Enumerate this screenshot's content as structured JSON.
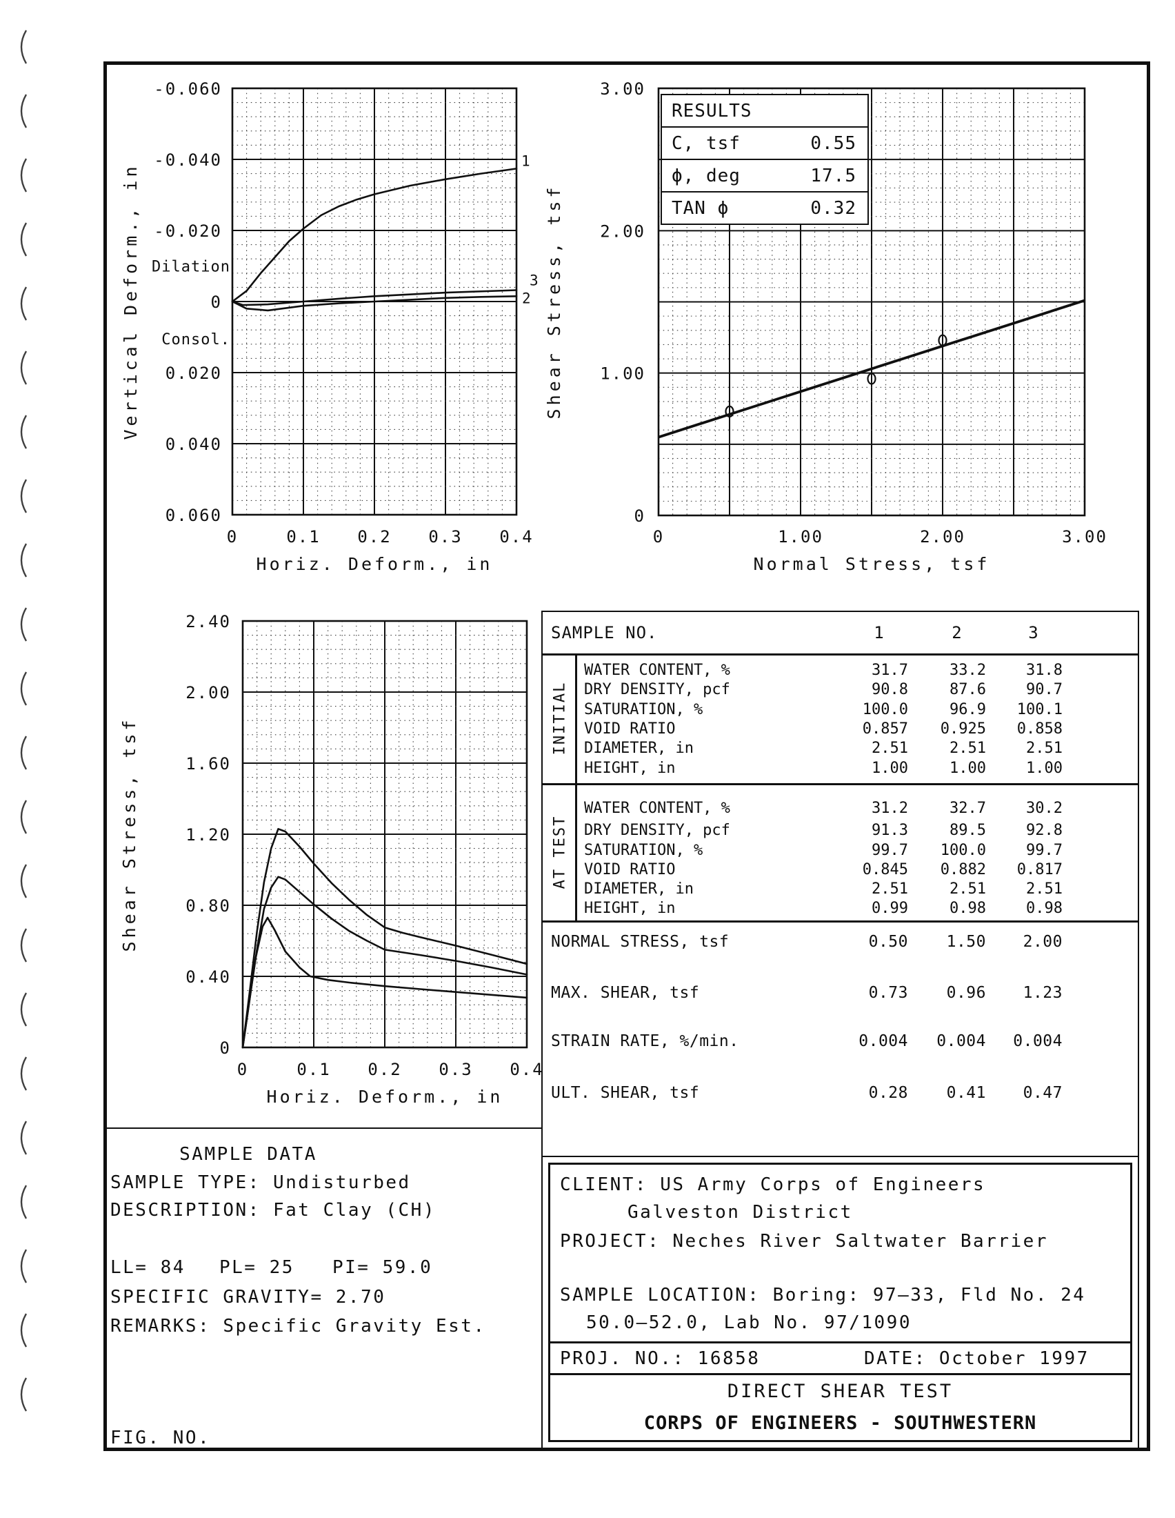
{
  "page": {
    "results_box": {
      "title": "RESULTS",
      "rows": [
        {
          "label": "C, tsf",
          "value": "0.55"
        },
        {
          "label": "ϕ, deg",
          "value": "17.5"
        },
        {
          "label": "TAN ϕ",
          "value": "0.32"
        }
      ]
    },
    "sample_table": {
      "header": "SAMPLE NO.",
      "columns": [
        "1",
        "2",
        "3"
      ],
      "sections": [
        {
          "label": "INITIAL",
          "rows": [
            {
              "name": "WATER CONTENT, %",
              "values": [
                "31.7",
                "33.2",
                "31.8"
              ]
            },
            {
              "name": "DRY DENSITY, pcf",
              "values": [
                "90.8",
                "87.6",
                "90.7"
              ]
            },
            {
              "name": "SATURATION, %",
              "values": [
                "100.0",
                "96.9",
                "100.1"
              ]
            },
            {
              "name": "VOID RATIO",
              "values": [
                "0.857",
                "0.925",
                "0.858"
              ]
            },
            {
              "name": "DIAMETER, in",
              "values": [
                "2.51",
                "2.51",
                "2.51"
              ]
            },
            {
              "name": "HEIGHT, in",
              "values": [
                "1.00",
                "1.00",
                "1.00"
              ]
            }
          ]
        },
        {
          "label": "AT TEST",
          "rows": [
            {
              "name": "WATER CONTENT, %",
              "values": [
                "31.2",
                "32.7",
                "30.2"
              ]
            },
            {
              "name": "DRY DENSITY, pcf",
              "values": [
                "91.3",
                "89.5",
                "92.8"
              ]
            },
            {
              "name": "SATURATION, %",
              "values": [
                "99.7",
                "100.0",
                "99.7"
              ]
            },
            {
              "name": "VOID RATIO",
              "values": [
                "0.845",
                "0.882",
                "0.817"
              ]
            },
            {
              "name": "DIAMETER, in",
              "values": [
                "2.51",
                "2.51",
                "2.51"
              ]
            },
            {
              "name": "HEIGHT, in",
              "values": [
                "0.99",
                "0.98",
                "0.98"
              ]
            }
          ]
        }
      ],
      "summary": [
        {
          "name": "NORMAL STRESS, tsf",
          "values": [
            "0.50",
            "1.50",
            "2.00"
          ]
        },
        {
          "name": "MAX. SHEAR, tsf",
          "values": [
            "0.73",
            "0.96",
            "1.23"
          ]
        },
        {
          "name": "STRAIN RATE, %/min.",
          "values": [
            "0.004",
            "0.004",
            "0.004"
          ]
        },
        {
          "name": "ULT. SHEAR, tsf",
          "values": [
            "0.28",
            "0.41",
            "0.47"
          ]
        }
      ]
    },
    "sample_data": {
      "title": "SAMPLE DATA",
      "type_line": "SAMPLE TYPE: Undisturbed",
      "description_line": "DESCRIPTION: Fat Clay (CH)",
      "ll": "LL= 84",
      "pl": "PL= 25",
      "pi": "PI= 59.0",
      "specific_gravity": "SPECIFIC GRAVITY= 2.70",
      "remarks": "REMARKS: Specific Gravity Est.",
      "fig_label": "FIG. NO."
    },
    "project_block": {
      "client_line1": "CLIENT: US Army Corps of Engineers",
      "client_line2": "Galveston District",
      "project": "PROJECT: Neches River Saltwater Barrier",
      "location1": "SAMPLE LOCATION: Boring: 97–33, Fld No. 24",
      "location2": "50.0–52.0, Lab No. 97/1090",
      "proj_no": "PROJ. NO.: 16858",
      "date": "DATE: October 1997",
      "test_title": "DIRECT SHEAR TEST",
      "organization": "CORPS OF ENGINEERS - SOUTHWESTERN"
    }
  },
  "chart_data": [
    {
      "id": "vertical-deform",
      "type": "line",
      "title": "",
      "xlabel": "Horiz. Deform., in",
      "ylabel": "Vertical Deform., in",
      "x_min": 0,
      "x_max": 0.4,
      "x_major": 0.1,
      "x_minor": 0.02,
      "y_top": -0.06,
      "y_bottom": 0.06,
      "y_major": 0.02,
      "y_minor": 0.004,
      "xticks": [
        {
          "v": 0,
          "label": "0"
        },
        {
          "v": 0.1,
          "label": "0.1"
        },
        {
          "v": 0.2,
          "label": "0.2"
        },
        {
          "v": 0.3,
          "label": "0.3"
        },
        {
          "v": 0.4,
          "label": "0.4"
        }
      ],
      "yticks": [
        {
          "v": -0.06,
          "label": "-0.060"
        },
        {
          "v": -0.04,
          "label": "-0.040"
        },
        {
          "v": -0.02,
          "label": "-0.020"
        },
        {
          "v": 0,
          "label": "0"
        },
        {
          "v": 0.02,
          "label": "0.020"
        },
        {
          "v": 0.04,
          "label": "0.040"
        },
        {
          "v": 0.06,
          "label": "0.060"
        }
      ],
      "annotations": [
        {
          "text": "Dilation",
          "v": -0.01
        },
        {
          "text": "Consol.",
          "v": 0.0105
        }
      ],
      "series": [
        {
          "name": "sample-1",
          "end_label": "1",
          "label_offset": [
            7,
            -4
          ],
          "points": [
            [
              0,
              0
            ],
            [
              0.02,
              -0.003
            ],
            [
              0.04,
              -0.008
            ],
            [
              0.06,
              -0.0125
            ],
            [
              0.08,
              -0.017
            ],
            [
              0.1,
              -0.0205
            ],
            [
              0.125,
              -0.0243
            ],
            [
              0.15,
              -0.0268
            ],
            [
              0.175,
              -0.0287
            ],
            [
              0.2,
              -0.0302
            ],
            [
              0.25,
              -0.0326
            ],
            [
              0.3,
              -0.0344
            ],
            [
              0.35,
              -0.036
            ],
            [
              0.4,
              -0.0374
            ]
          ]
        },
        {
          "name": "sample-2",
          "end_label": "2",
          "label_offset": [
            8,
            10
          ],
          "points": [
            [
              0,
              0
            ],
            [
              0.02,
              0.002
            ],
            [
              0.05,
              0.0025
            ],
            [
              0.1,
              0.0012
            ],
            [
              0.15,
              0.0005
            ],
            [
              0.2,
              0
            ],
            [
              0.25,
              -0.0005
            ],
            [
              0.3,
              -0.001
            ],
            [
              0.35,
              -0.0013
            ],
            [
              0.4,
              -0.0015
            ]
          ]
        },
        {
          "name": "sample-3",
          "end_label": "3",
          "label_offset": [
            19,
            -7
          ],
          "points": [
            [
              0,
              0
            ],
            [
              0.015,
              0.001
            ],
            [
              0.05,
              0.0008
            ],
            [
              0.1,
              0
            ],
            [
              0.15,
              -0.0008
            ],
            [
              0.2,
              -0.0015
            ],
            [
              0.3,
              -0.0025
            ],
            [
              0.4,
              -0.0032
            ]
          ]
        }
      ]
    },
    {
      "id": "failure-envelope",
      "type": "scatter",
      "title": "",
      "xlabel": "Normal Stress, tsf",
      "ylabel": "Shear Stress, tsf",
      "x_min": 0,
      "x_max": 3.0,
      "x_major": 0.5,
      "x_minor": 0.1,
      "y_top": 3.0,
      "y_bottom": 0,
      "y_major": 0.5,
      "y_minor": 0.1,
      "xticks": [
        {
          "v": 0,
          "label": "0"
        },
        {
          "v": 1.0,
          "label": "1.00"
        },
        {
          "v": 2.0,
          "label": "2.00"
        },
        {
          "v": 3.0,
          "label": "3.00"
        }
      ],
      "yticks": [
        {
          "v": 3.0,
          "label": "3.00"
        },
        {
          "v": 2.0,
          "label": "2.00"
        },
        {
          "v": 1.0,
          "label": "1.00"
        },
        {
          "v": 0,
          "label": "0"
        }
      ],
      "annotations": [],
      "trend_line": {
        "c_tsf": 0.55,
        "tan_phi": 0.32,
        "points": [
          [
            0,
            0.55
          ],
          [
            3.0,
            1.51
          ]
        ]
      },
      "markers": [
        [
          0.5,
          0.73
        ],
        [
          1.5,
          0.96
        ],
        [
          2.0,
          1.23
        ]
      ],
      "series": []
    },
    {
      "id": "shear-deform",
      "type": "line",
      "title": "",
      "xlabel": "Horiz. Deform., in",
      "ylabel": "Shear Stress, tsf",
      "x_min": 0,
      "x_max": 0.4,
      "x_major": 0.1,
      "x_minor": 0.02,
      "y_top": 2.4,
      "y_bottom": 0,
      "y_major": 0.4,
      "y_minor": 0.08,
      "xticks": [
        {
          "v": 0,
          "label": "0"
        },
        {
          "v": 0.1,
          "label": "0.1"
        },
        {
          "v": 0.2,
          "label": "0.2"
        },
        {
          "v": 0.3,
          "label": "0.3"
        },
        {
          "v": 0.4,
          "label": "0.4"
        }
      ],
      "yticks": [
        {
          "v": 2.4,
          "label": "2.40"
        },
        {
          "v": 2.0,
          "label": "2.00"
        },
        {
          "v": 1.6,
          "label": "1.60"
        },
        {
          "v": 1.2,
          "label": "1.20"
        },
        {
          "v": 0.8,
          "label": "0.80"
        },
        {
          "v": 0.4,
          "label": "0.40"
        },
        {
          "v": 0,
          "label": "0"
        }
      ],
      "annotations": [],
      "series": [
        {
          "name": "sample-3-peak-1.23",
          "points": [
            [
              0,
              0
            ],
            [
              0.01,
              0.32
            ],
            [
              0.02,
              0.65
            ],
            [
              0.03,
              0.93
            ],
            [
              0.04,
              1.12
            ],
            [
              0.05,
              1.23
            ],
            [
              0.06,
              1.215
            ],
            [
              0.08,
              1.13
            ],
            [
              0.1,
              1.035
            ],
            [
              0.125,
              0.925
            ],
            [
              0.15,
              0.83
            ],
            [
              0.175,
              0.745
            ],
            [
              0.2,
              0.675
            ],
            [
              0.225,
              0.645
            ],
            [
              0.25,
              0.62
            ],
            [
              0.3,
              0.573
            ],
            [
              0.35,
              0.522
            ],
            [
              0.4,
              0.47
            ]
          ]
        },
        {
          "name": "sample-2-peak-0.96",
          "points": [
            [
              0,
              0
            ],
            [
              0.01,
              0.28
            ],
            [
              0.02,
              0.55
            ],
            [
              0.03,
              0.78
            ],
            [
              0.04,
              0.9
            ],
            [
              0.05,
              0.96
            ],
            [
              0.06,
              0.945
            ],
            [
              0.08,
              0.875
            ],
            [
              0.1,
              0.805
            ],
            [
              0.125,
              0.725
            ],
            [
              0.15,
              0.655
            ],
            [
              0.175,
              0.6
            ],
            [
              0.2,
              0.55
            ],
            [
              0.25,
              0.52
            ],
            [
              0.3,
              0.487
            ],
            [
              0.35,
              0.45
            ],
            [
              0.4,
              0.41
            ]
          ]
        },
        {
          "name": "sample-1-peak-0.73",
          "points": [
            [
              0,
              0
            ],
            [
              0.008,
              0.22
            ],
            [
              0.018,
              0.5
            ],
            [
              0.028,
              0.68
            ],
            [
              0.035,
              0.73
            ],
            [
              0.045,
              0.66
            ],
            [
              0.06,
              0.54
            ],
            [
              0.08,
              0.45
            ],
            [
              0.095,
              0.4
            ],
            [
              0.12,
              0.38
            ],
            [
              0.15,
              0.365
            ],
            [
              0.2,
              0.345
            ],
            [
              0.25,
              0.328
            ],
            [
              0.3,
              0.312
            ],
            [
              0.35,
              0.296
            ],
            [
              0.4,
              0.28
            ]
          ]
        }
      ]
    }
  ]
}
